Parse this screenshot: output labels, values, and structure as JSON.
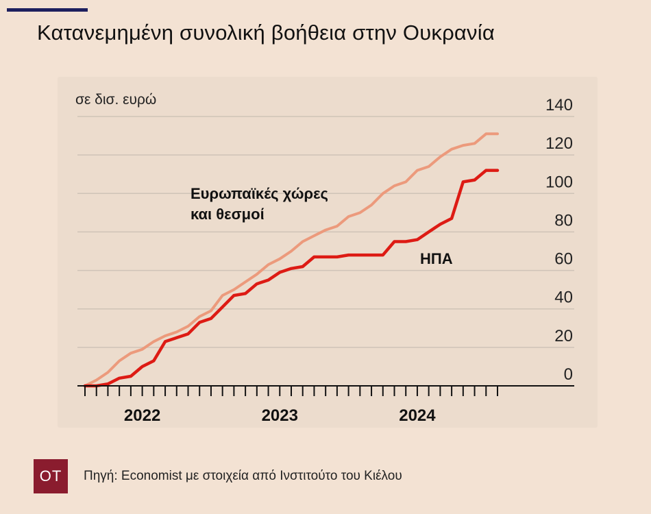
{
  "title": "Κατανεμημένη συνολική βοήθεια στην Ουκρανία",
  "source": "Πηγή: Economist με στοιχεία από Ινστιτούτο του Κιέλου",
  "logo_text": "OT",
  "colors": {
    "background": "#f3e2d3",
    "accent": "#1d1f5e",
    "europe": "#ec9a7c",
    "usa": "#dd1b14",
    "logo": "#8a1c2e"
  },
  "chart_data": {
    "type": "line",
    "unit_label": "σε  δισ. ευρώ",
    "ylim": [
      0,
      140
    ],
    "yticks": [
      0,
      20,
      40,
      60,
      80,
      100,
      120,
      140
    ],
    "xlim": [
      0,
      36
    ],
    "year_labels": [
      {
        "label": "2022",
        "x": 5
      },
      {
        "label": "2023",
        "x": 17
      },
      {
        "label": "2024",
        "x": 29
      }
    ],
    "month_ticks": [
      0,
      1,
      2,
      3,
      4,
      5,
      6,
      7,
      8,
      9,
      10,
      11,
      12,
      13,
      14,
      15,
      16,
      17,
      18,
      19,
      20,
      21,
      22,
      23,
      24,
      25,
      26,
      27,
      28,
      29,
      30,
      31,
      32,
      33,
      34,
      35,
      36
    ],
    "series": [
      {
        "name": "Ευρωπαϊκές χώρες\nκαι θεσμοί",
        "label_lines": [
          "Ευρωπαϊκές χώρες",
          "και θεσμοί"
        ],
        "color": "#ec9a7c",
        "x": [
          0,
          1,
          2,
          3,
          4,
          5,
          6,
          7,
          8,
          9,
          10,
          11,
          12,
          13,
          14,
          15,
          16,
          17,
          18,
          19,
          20,
          21,
          22,
          23,
          24,
          25,
          26,
          27,
          28,
          29,
          30,
          31,
          32,
          33,
          34,
          35,
          36
        ],
        "values": [
          0,
          3,
          7,
          13,
          17,
          19,
          23,
          26,
          28,
          31,
          36,
          39,
          47,
          50,
          54,
          58,
          63,
          66,
          70,
          75,
          78,
          81,
          83,
          88,
          90,
          94,
          100,
          104,
          106,
          112,
          114,
          119,
          123,
          125,
          126,
          131,
          131
        ]
      },
      {
        "name": "ΗΠΑ",
        "label_lines": [
          "ΗΠΑ"
        ],
        "color": "#dd1b14",
        "x": [
          0,
          1,
          2,
          3,
          4,
          5,
          6,
          7,
          8,
          9,
          10,
          11,
          12,
          13,
          14,
          15,
          16,
          17,
          18,
          19,
          20,
          21,
          22,
          23,
          24,
          25,
          26,
          27,
          28,
          29,
          30,
          31,
          32,
          33,
          34,
          35,
          36
        ],
        "values": [
          0,
          0,
          1,
          4,
          5,
          10,
          13,
          23,
          25,
          27,
          33,
          35,
          41,
          47,
          48,
          53,
          55,
          59,
          61,
          62,
          67,
          67,
          67,
          68,
          68,
          68,
          68,
          75,
          75,
          76,
          80,
          84,
          87,
          106,
          107,
          112,
          112
        ]
      }
    ]
  }
}
